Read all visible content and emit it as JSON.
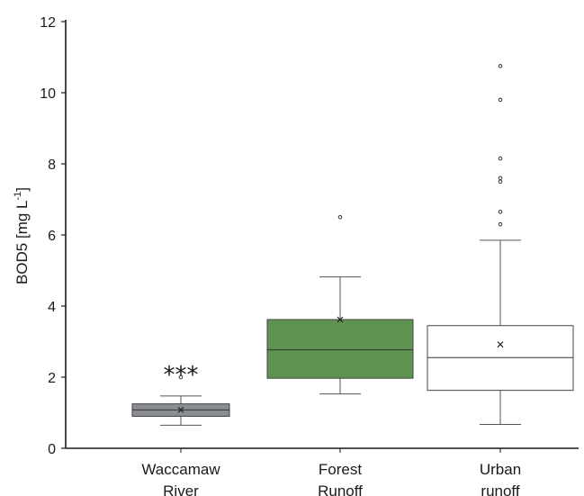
{
  "chart_data": {
    "type": "boxplot",
    "ylabel_main": "BOD5 [mg L",
    "ylabel_sup": "-1",
    "ylabel_end": "]",
    "ylim": [
      0,
      12
    ],
    "yticks": [
      "0",
      "2",
      "4",
      "6",
      "8",
      "10",
      "12"
    ],
    "grid": false,
    "boxes": [
      {
        "label_lines": [
          "Waccamaw",
          "River"
        ],
        "fill": "#8a8d91",
        "whisker_low": 0.65,
        "q1": 0.9,
        "median": 1.08,
        "q3": 1.25,
        "whisker_high": 1.47,
        "mean": 1.08,
        "outliers": [
          2.0
        ],
        "annotation": "***"
      },
      {
        "label_lines": [
          "Forest",
          "Runoff"
        ],
        "fill": "#5e9351",
        "whisker_low": 1.53,
        "q1": 1.97,
        "median": 2.77,
        "q3": 3.62,
        "whisker_high": 4.82,
        "mean": 3.62,
        "outliers": [
          6.5
        ],
        "annotation": ""
      },
      {
        "label_lines": [
          "Urban",
          "runoff"
        ],
        "fill": "#ffffff",
        "whisker_low": 0.67,
        "q1": 1.63,
        "median": 2.55,
        "q3": 3.45,
        "whisker_high": 5.85,
        "mean": 2.92,
        "outliers": [
          6.3,
          6.65,
          7.5,
          7.6,
          8.15,
          9.8,
          10.75
        ],
        "annotation": ""
      }
    ]
  }
}
